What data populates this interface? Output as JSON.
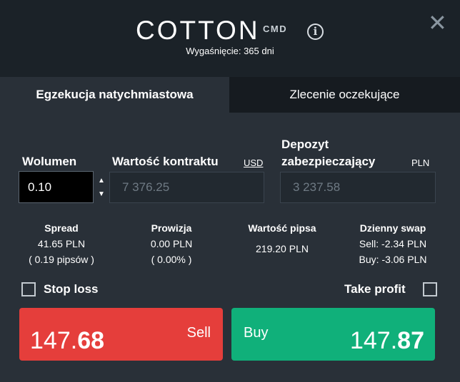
{
  "header": {
    "title": "COTTON",
    "category": "CMD",
    "info_icon": "info-icon",
    "close_icon": "close-icon",
    "close_glyph": "✕",
    "expiry": "Wygaśnięcie: 365 dni"
  },
  "tabs": [
    {
      "label": "Egzekucja natychmiastowa",
      "active": true
    },
    {
      "label": "Zlecenie oczekujące",
      "active": false
    }
  ],
  "form": {
    "volume": {
      "label": "Wolumen",
      "value": "0.10"
    },
    "contract_value": {
      "label": "Wartość kontraktu",
      "currency": "USD",
      "value": "7 376.25"
    },
    "margin": {
      "label_line1": "Depozyt",
      "label_line2": "zabezpieczający",
      "currency": "PLN",
      "value": "3 237.58"
    }
  },
  "stats": {
    "spread": {
      "label": "Spread",
      "value": "41.65 PLN",
      "pips": "( 0.19 pipsów )"
    },
    "commission": {
      "label": "Prowizja",
      "value": "0.00 PLN",
      "percent": "( 0.00% )"
    },
    "pip_value": {
      "label": "Wartość pipsa",
      "value": "219.20 PLN"
    },
    "swap": {
      "label": "Dzienny swap",
      "sell": "Sell: -2.34 PLN",
      "buy": "Buy: -3.06 PLN"
    }
  },
  "options": {
    "stop_loss": {
      "label": "Stop loss",
      "checked": false
    },
    "take_profit": {
      "label": "Take profit",
      "checked": false
    }
  },
  "actions": {
    "sell": {
      "label": "Sell",
      "price_main": "147.",
      "price_big": "68",
      "color": "#e53e3b"
    },
    "buy": {
      "label": "Buy",
      "price_main": "147.",
      "price_big": "87",
      "color": "#10b07a"
    }
  },
  "colors": {
    "background": "#1b2228",
    "panel": "#293038",
    "tab_inactive": "#161b20"
  }
}
